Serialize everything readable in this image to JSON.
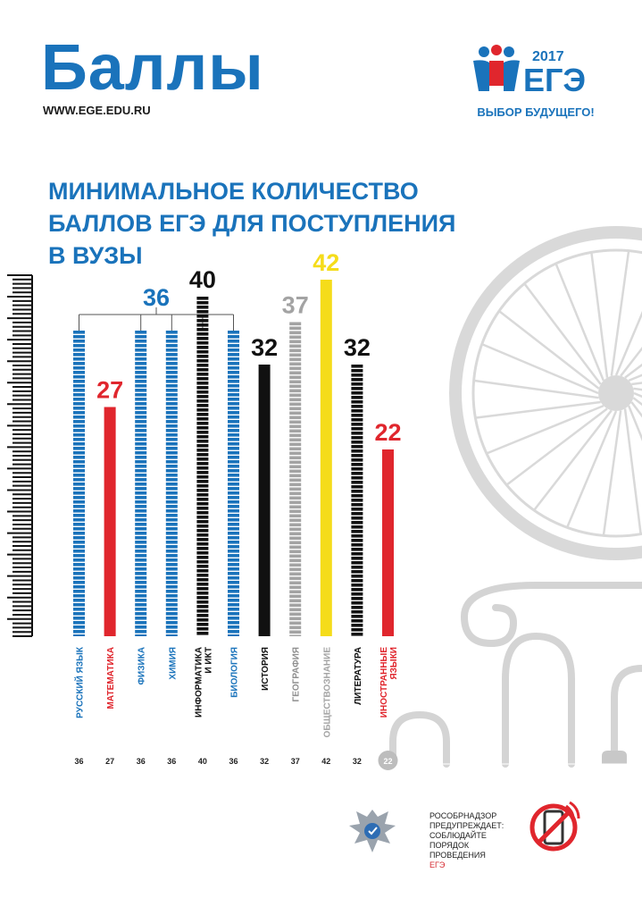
{
  "header": {
    "title": "Баллы",
    "url": "WWW.EGE.EDU.RU"
  },
  "logo": {
    "year": "2017",
    "word": "ЕГЭ",
    "slogan": "ВЫБОР БУДУЩЕГО!"
  },
  "headline": {
    "line1": "МИНИМАЛЬНОЕ КОЛИЧЕСТВО",
    "line2": "БАЛЛОВ ЕГЭ ДЛЯ ПОСТУПЛЕНИЯ",
    "line3": "В ВУЗЫ"
  },
  "chart_data": {
    "type": "bar",
    "title": "МИНИМАЛЬНОЕ КОЛИЧЕСТВО БАЛЛОВ ЕГЭ ДЛЯ ПОСТУПЛЕНИЯ В ВУЗЫ",
    "categories": [
      "РУССКИЙ ЯЗЫК",
      "МАТЕМАТИКА",
      "ФИЗИКА",
      "ХИМИЯ",
      "ИНФОРМАТИКА И ИКТ",
      "БИОЛОГИЯ",
      "ИСТОРИЯ",
      "ГЕОГРАФИЯ",
      "ОБЩЕСТВОЗНАНИЕ",
      "ЛИТЕРАТУРА",
      "ИНОСТРАННЫЕ ЯЗЫКИ"
    ],
    "label_lines": [
      [
        "РУССКИЙ ЯЗЫК"
      ],
      [
        "МАТЕМАТИКА"
      ],
      [
        "ФИЗИКА"
      ],
      [
        "ХИМИЯ"
      ],
      [
        "ИНФОРМАТИКА",
        "И ИКТ"
      ],
      [
        "БИОЛОГИЯ"
      ],
      [
        "ИСТОРИЯ"
      ],
      [
        "ГЕОГРАФИЯ"
      ],
      [
        "ОБЩЕСТВОЗНАНИЕ"
      ],
      [
        "ЛИТЕРАТУРА"
      ],
      [
        "ИНОСТРАННЫЕ",
        "ЯЗЫКИ"
      ]
    ],
    "values": [
      36,
      27,
      36,
      36,
      40,
      36,
      32,
      37,
      42,
      32,
      22
    ],
    "bar_colors": [
      "#1a73bb",
      "#e0262d",
      "#1a73bb",
      "#1a73bb",
      "#111111",
      "#1a73bb",
      "#111111",
      "#a3a3a3",
      "#f5dc1a",
      "#111111",
      "#e0262d"
    ],
    "bar_style": [
      "striped",
      "solid",
      "striped",
      "striped",
      "striped",
      "striped",
      "solid",
      "striped",
      "solid",
      "striped",
      "solid"
    ],
    "label_colors": [
      "#1a73bb",
      "#e0262d",
      "#1a73bb",
      "#1a73bb",
      "#111111",
      "#1a73bb",
      "#111111",
      "#8f8f8f",
      "#a3a3a3",
      "#111111",
      "#e0262d"
    ],
    "value_labels": [
      {
        "text": "36",
        "color": "#1a73bb",
        "for": [
          0,
          2,
          3,
          5
        ]
      },
      {
        "text": "27",
        "color": "#e0262d",
        "for": [
          1
        ]
      },
      {
        "text": "40",
        "color": "#111111",
        "for": [
          4
        ]
      },
      {
        "text": "32",
        "color": "#111111",
        "for": [
          6
        ]
      },
      {
        "text": "37",
        "color": "#a3a3a3",
        "for": [
          7
        ]
      },
      {
        "text": "42",
        "color": "#f5dc1a",
        "for": [
          8
        ]
      },
      {
        "text": "32",
        "color": "#111111",
        "for": [
          9
        ]
      },
      {
        "text": "22",
        "color": "#e0262d",
        "for": [
          10
        ]
      }
    ],
    "bottom_values": [
      "36",
      "27",
      "36",
      "36",
      "40",
      "36",
      "32",
      "37",
      "42",
      "32",
      "22"
    ],
    "ylim": [
      0,
      42
    ]
  },
  "footer": {
    "line1": "РОСОБРНАДЗОР",
    "line2": "ПРЕДУПРЕЖДАЕТ:",
    "line3": "СОБЛЮДАЙТЕ",
    "line4": "ПОРЯДОК",
    "line5": "ПРОВЕДЕНИЯ",
    "line6": "ЕГЭ"
  },
  "colors": {
    "brand_blue": "#1a73bb",
    "red": "#e0262d",
    "yellow": "#f5dc1a",
    "grey": "#a3a3a3",
    "decor_grey": "#d9d9d9"
  },
  "icons": [
    "ege-logo-icon",
    "rosobrnadzor-emblem-icon",
    "no-phone-icon",
    "bicycle-wheel-decor",
    "column-scroll-decor"
  ]
}
